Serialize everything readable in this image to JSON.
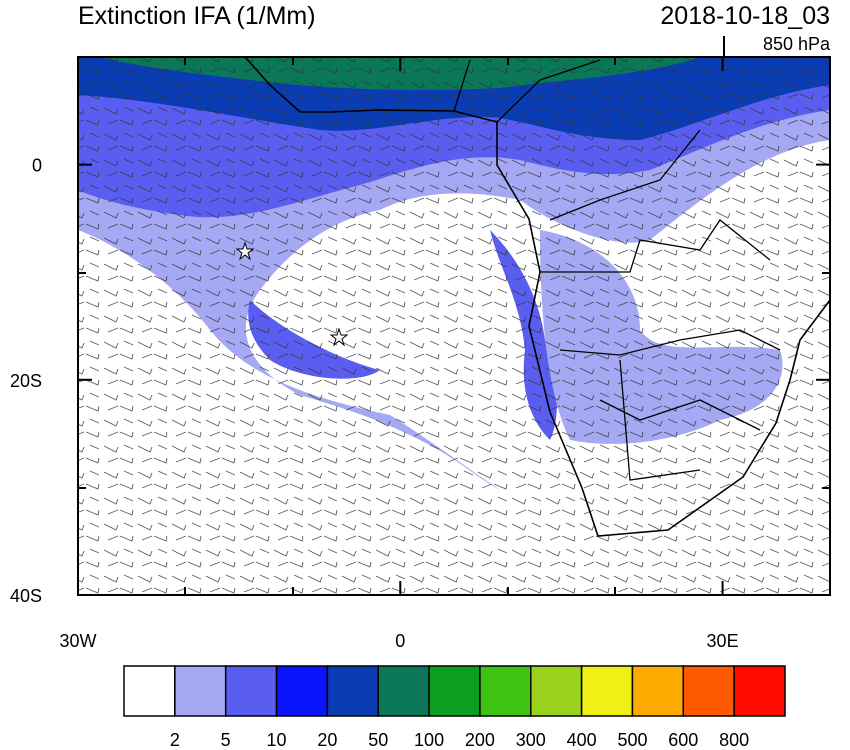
{
  "header": {
    "title": "Extinction IFA (1/Mm)",
    "timestamp": "2018-10-18_03",
    "level": "850 hPa"
  },
  "map": {
    "lon_range": [
      -30,
      40
    ],
    "lat_range": [
      -40,
      10
    ],
    "lon_ticks": [
      {
        "value": -30,
        "label": "30W"
      },
      0,
      {
        "value": 30,
        "label": "30E"
      }
    ],
    "lat_ticks": [
      0,
      {
        "value": -20,
        "label": "20S"
      },
      {
        "value": -40,
        "label": "40S"
      }
    ]
  },
  "colorbar": {
    "colors": [
      "#ffffff",
      "#a5a8f3",
      "#5a5ef0",
      "#0a14ff",
      "#0a3cb4",
      "#0a7858",
      "#0aa01e",
      "#3cc314",
      "#9bd21e",
      "#f0f014",
      "#ffaa00",
      "#ff5a00",
      "#ff0a00"
    ],
    "levels": [
      2,
      5,
      10,
      20,
      50,
      100,
      200,
      300,
      400,
      500,
      600,
      800
    ]
  }
}
